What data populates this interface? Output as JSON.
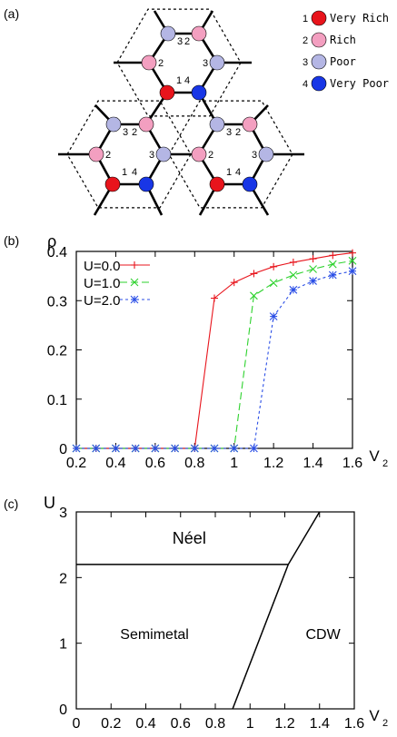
{
  "panel_a": {
    "label": "(a)",
    "legend": [
      {
        "num": "1",
        "text": "Very Rich",
        "color": "#e8141c"
      },
      {
        "num": "2",
        "text": "Rich",
        "color": "#f39fc0"
      },
      {
        "num": "3",
        "text": "Poor",
        "color": "#b4b6e4"
      },
      {
        "num": "4",
        "text": "Very Poor",
        "color": "#1836e6"
      }
    ]
  },
  "chart_data": [
    {
      "type": "line",
      "panel_label": "(b)",
      "ylabel": "ρ",
      "xlabel_main": "V",
      "xlabel_sub": "2",
      "xlim": [
        0.2,
        1.6
      ],
      "ylim": [
        0,
        0.4
      ],
      "x_ticks": [
        "0.2",
        "0.4",
        "0.6",
        "0.8",
        "1",
        "1.2",
        "1.4",
        "1.6"
      ],
      "y_ticks": [
        "0",
        "0.1",
        "0.2",
        "0.3",
        "0.4"
      ],
      "series": [
        {
          "name": "U=0.0",
          "color": "#e8141c",
          "marker": "+",
          "dash": "",
          "x": [
            0.2,
            0.3,
            0.4,
            0.5,
            0.6,
            0.7,
            0.8,
            0.9,
            1.0,
            1.1,
            1.2,
            1.3,
            1.4,
            1.5,
            1.6
          ],
          "y": [
            0,
            0,
            0,
            0,
            0,
            0,
            0,
            0.305,
            0.337,
            0.355,
            0.369,
            0.378,
            0.385,
            0.392,
            0.397
          ]
        },
        {
          "name": "U=1.0",
          "color": "#2ed22e",
          "marker": "x",
          "dash": "8,4",
          "x": [
            0.2,
            0.3,
            0.4,
            0.5,
            0.6,
            0.7,
            0.8,
            0.9,
            1.0,
            1.1,
            1.2,
            1.3,
            1.4,
            1.5,
            1.6
          ],
          "y": [
            0,
            0,
            0,
            0,
            0,
            0,
            0,
            0,
            0,
            0.31,
            0.336,
            0.352,
            0.364,
            0.374,
            0.381
          ]
        },
        {
          "name": "U=2.0",
          "color": "#2a4ee6",
          "marker": "*",
          "dash": "3,3",
          "x": [
            0.2,
            0.3,
            0.4,
            0.5,
            0.6,
            0.7,
            0.8,
            0.9,
            1.0,
            1.1,
            1.2,
            1.3,
            1.4,
            1.5,
            1.6
          ],
          "y": [
            0,
            0,
            0,
            0,
            0,
            0,
            0,
            0,
            0,
            0,
            0.268,
            0.322,
            0.34,
            0.352,
            0.36
          ]
        }
      ]
    },
    {
      "type": "line",
      "panel_label": "(c)",
      "ylabel": "U",
      "xlabel_main": "V",
      "xlabel_sub": "2",
      "xlim": [
        0,
        1.6
      ],
      "ylim": [
        0,
        3
      ],
      "x_ticks": [
        "0",
        "0.2",
        "0.4",
        "0.6",
        "0.8",
        "1",
        "1.2",
        "1.4",
        "1.6"
      ],
      "y_ticks": [
        "0",
        "1",
        "2",
        "3"
      ],
      "region_labels": [
        {
          "text": "Néel",
          "x": 0.65,
          "y": 2.6
        },
        {
          "text": "Semimetal",
          "x": 0.45,
          "y": 1.15
        },
        {
          "text": "CDW",
          "x": 1.42,
          "y": 1.15
        }
      ],
      "boundaries": [
        {
          "x": [
            0,
            1.22
          ],
          "y": [
            2.2,
            2.2
          ]
        },
        {
          "x": [
            0.9,
            1.22,
            1.4
          ],
          "y": [
            0,
            2.2,
            3.0
          ]
        }
      ]
    }
  ]
}
